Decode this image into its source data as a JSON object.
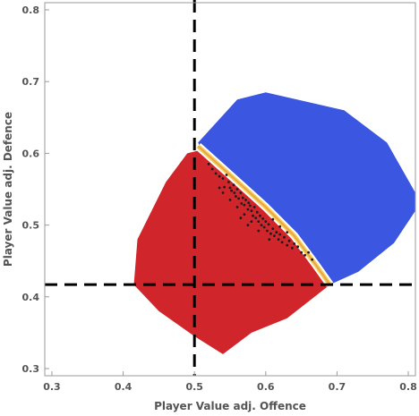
{
  "chart_data": {
    "type": "scatter",
    "title": "",
    "xlabel": "Player Value adj. Offence",
    "ylabel": "Player Value adj. Defence",
    "xlim": [
      0.29,
      0.81
    ],
    "ylim": [
      0.29,
      0.81
    ],
    "xticks": [
      0.3,
      0.4,
      0.5,
      0.6,
      0.7,
      0.8
    ],
    "yticks": [
      0.3,
      0.4,
      0.5,
      0.6,
      0.7,
      0.8
    ],
    "xtick_labels": [
      "0.3",
      "0.4",
      "0.5",
      "0.6",
      "0.7",
      "0.8"
    ],
    "ytick_labels": [
      "0.3",
      "0.4",
      "0.5",
      "0.6",
      "0.7",
      "0.8"
    ],
    "grid": false,
    "threshold_lines": {
      "x": 0.5,
      "y": 0.417
    },
    "regions": [
      {
        "color": "#d0252a",
        "polygon": [
          [
            0.415,
            0.417
          ],
          [
            0.42,
            0.48
          ],
          [
            0.46,
            0.56
          ],
          [
            0.49,
            0.6
          ],
          [
            0.51,
            0.605
          ],
          [
            0.55,
            0.565
          ],
          [
            0.6,
            0.52
          ],
          [
            0.64,
            0.48
          ],
          [
            0.67,
            0.44
          ],
          [
            0.69,
            0.417
          ],
          [
            0.63,
            0.37
          ],
          [
            0.58,
            0.35
          ],
          [
            0.54,
            0.32
          ],
          [
            0.5,
            0.345
          ],
          [
            0.45,
            0.38
          ]
        ]
      },
      {
        "color": "#3b56e0",
        "polygon": [
          [
            0.505,
            0.615
          ],
          [
            0.56,
            0.675
          ],
          [
            0.6,
            0.685
          ],
          [
            0.71,
            0.66
          ],
          [
            0.77,
            0.615
          ],
          [
            0.81,
            0.545
          ],
          [
            0.81,
            0.52
          ],
          [
            0.78,
            0.475
          ],
          [
            0.73,
            0.435
          ],
          [
            0.69,
            0.417
          ],
          [
            0.67,
            0.44
          ],
          [
            0.64,
            0.48
          ],
          [
            0.6,
            0.52
          ],
          [
            0.55,
            0.565
          ],
          [
            0.51,
            0.605
          ]
        ]
      }
    ],
    "boundary_band": [
      [
        0.505,
        0.61
      ],
      [
        0.55,
        0.57
      ],
      [
        0.6,
        0.525
      ],
      [
        0.64,
        0.485
      ],
      [
        0.67,
        0.445
      ],
      [
        0.69,
        0.417
      ]
    ],
    "scatter_points": [
      [
        0.52,
        0.585
      ],
      [
        0.525,
        0.578
      ],
      [
        0.53,
        0.572
      ],
      [
        0.535,
        0.568
      ],
      [
        0.54,
        0.565
      ],
      [
        0.542,
        0.553
      ],
      [
        0.545,
        0.57
      ],
      [
        0.548,
        0.56
      ],
      [
        0.55,
        0.552
      ],
      [
        0.552,
        0.548
      ],
      [
        0.555,
        0.556
      ],
      [
        0.556,
        0.545
      ],
      [
        0.558,
        0.54
      ],
      [
        0.56,
        0.55
      ],
      [
        0.562,
        0.537
      ],
      [
        0.565,
        0.545
      ],
      [
        0.566,
        0.53
      ],
      [
        0.568,
        0.538
      ],
      [
        0.57,
        0.528
      ],
      [
        0.572,
        0.535
      ],
      [
        0.575,
        0.522
      ],
      [
        0.576,
        0.531
      ],
      [
        0.578,
        0.527
      ],
      [
        0.58,
        0.52
      ],
      [
        0.582,
        0.513
      ],
      [
        0.584,
        0.525
      ],
      [
        0.586,
        0.51
      ],
      [
        0.588,
        0.518
      ],
      [
        0.59,
        0.505
      ],
      [
        0.592,
        0.513
      ],
      [
        0.594,
        0.5
      ],
      [
        0.596,
        0.509
      ],
      [
        0.598,
        0.497
      ],
      [
        0.6,
        0.505
      ],
      [
        0.602,
        0.492
      ],
      [
        0.604,
        0.501
      ],
      [
        0.607,
        0.488
      ],
      [
        0.61,
        0.495
      ],
      [
        0.612,
        0.485
      ],
      [
        0.615,
        0.49
      ],
      [
        0.618,
        0.48
      ],
      [
        0.62,
        0.487
      ],
      [
        0.623,
        0.476
      ],
      [
        0.626,
        0.483
      ],
      [
        0.63,
        0.472
      ],
      [
        0.633,
        0.478
      ],
      [
        0.637,
        0.468
      ],
      [
        0.64,
        0.474
      ],
      [
        0.55,
        0.535
      ],
      [
        0.56,
        0.525
      ],
      [
        0.57,
        0.515
      ],
      [
        0.58,
        0.505
      ],
      [
        0.54,
        0.545
      ],
      [
        0.565,
        0.51
      ],
      [
        0.575,
        0.5
      ],
      [
        0.59,
        0.492
      ],
      [
        0.605,
        0.48
      ],
      [
        0.535,
        0.552
      ],
      [
        0.61,
        0.508
      ],
      [
        0.62,
        0.498
      ],
      [
        0.63,
        0.49
      ],
      [
        0.645,
        0.47
      ],
      [
        0.65,
        0.462
      ],
      [
        0.655,
        0.458
      ],
      [
        0.66,
        0.462
      ],
      [
        0.665,
        0.452
      ]
    ]
  }
}
